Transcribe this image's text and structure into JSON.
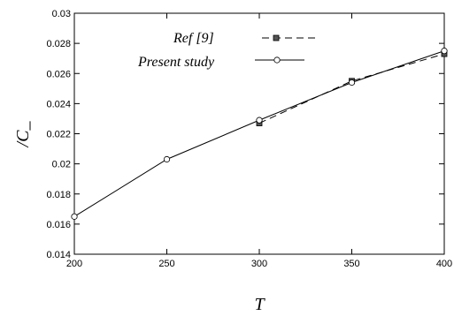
{
  "chart_data": {
    "type": "line",
    "title": "",
    "xlabel": "T",
    "ylabel": "/C_",
    "xlim": [
      200,
      400
    ],
    "ylim": [
      0.014,
      0.03
    ],
    "x_ticks": [
      "200",
      "250",
      "300",
      "350",
      "400"
    ],
    "y_ticks": [
      "0.014",
      "0.016",
      "0.018",
      "0.02",
      "0.022",
      "0.024",
      "0.026",
      "0.028",
      "0.03"
    ],
    "grid": false,
    "legend_position": "top-center",
    "legend": {
      "ref_name": "Ref",
      "ref_suffix": " [9]",
      "present_name": "Present study"
    },
    "series": [
      {
        "name": "Ref [9]",
        "line_style": "dashed",
        "marker": "square",
        "x": [
          300,
          350,
          400
        ],
        "y": [
          0.0227,
          0.0255,
          0.0273
        ]
      },
      {
        "name": "Present study",
        "line_style": "solid",
        "marker": "circle",
        "x": [
          200,
          250,
          300,
          350,
          400
        ],
        "y": [
          0.0165,
          0.0203,
          0.0229,
          0.0254,
          0.0275
        ]
      }
    ]
  }
}
